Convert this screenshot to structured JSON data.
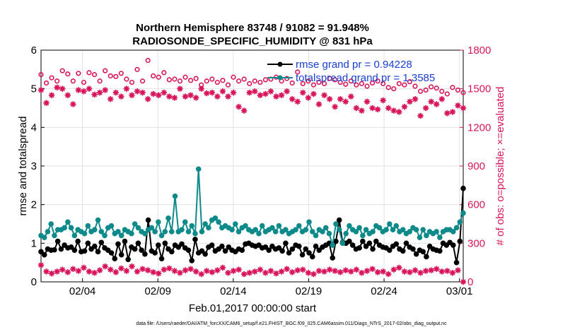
{
  "chart_data": {
    "type": "line",
    "title_lines": [
      "Northern Hemisphere 83748 / 91082 = 91.948%",
      "RADIOSONDE_SPECIFIC_HUMIDITY @ 831 hPa"
    ],
    "xlabel": "Feb.01,2017 00:00:00 start",
    "ylabel_left": "rmse and totalspread",
    "ylabel_right": "# of obs: o=possible; ×=evaluated",
    "footer": "data file: /Users/raeder/DAI/ATM_forcXX/CAM6_setup/f.e21.FHIST_BGC.f09_025.CAM6assim.011/Diags_NTrS_2017-02/obs_diag_output.nc",
    "x_ticks": [
      {
        "day": 3,
        "label": "02/04"
      },
      {
        "day": 8,
        "label": "02/09"
      },
      {
        "day": 13,
        "label": "02/14"
      },
      {
        "day": 18,
        "label": "02/19"
      },
      {
        "day": 23,
        "label": "02/24"
      },
      {
        "day": 28,
        "label": "03/01"
      }
    ],
    "xlim": [
      0.25,
      28.25
    ],
    "ylim_left": [
      0,
      6
    ],
    "ylim_right": [
      0,
      1800
    ],
    "y_ticks_left": [
      0,
      1,
      2,
      3,
      4,
      5,
      6
    ],
    "y_ticks_right": [
      0,
      300,
      600,
      900,
      1200,
      1500,
      1800
    ],
    "colors": {
      "rmse": "#000000",
      "spread": "#0f8a8a",
      "obs": "#d8145a",
      "legend_text": "#1a3fd0",
      "grid": "#e2e2e2"
    },
    "legend": [
      {
        "label": "rmse grand pr = 0.94228",
        "series": "rmse"
      },
      {
        "label": "totalspread grand pr = 1.3585",
        "series": "spread"
      }
    ],
    "series": [
      {
        "name": "rmse",
        "axis": "left",
        "values": [
          0.78,
          0.7,
          0.85,
          0.82,
          0.83,
          1.05,
          0.85,
          0.95,
          0.88,
          0.9,
          0.82,
          1.05,
          0.78,
          0.8,
          1.0,
          0.85,
          0.92,
          0.78,
          1.02,
          0.88,
          0.82,
          0.75,
          0.6,
          0.98,
          0.7,
          1.05,
          0.58,
          0.9,
          0.85,
          1.0,
          0.82,
          0.72,
          1.6,
          0.8,
          0.75,
          0.95,
          0.6,
          1.0,
          0.85,
          0.78,
          0.95,
          0.9,
          0.98,
          0.88,
          0.82,
          0.55,
          1.1,
          0.75,
          0.8,
          0.72,
          0.9,
          0.95,
          0.8,
          0.85,
          0.92,
          0.8,
          0.9,
          0.82,
          0.78,
          0.85,
          0.82,
          0.98,
          1.0,
          0.95,
          0.92,
          0.95,
          0.88,
          0.9,
          0.82,
          0.92,
          0.85,
          0.88,
          0.8,
          1.0,
          0.75,
          0.85,
          0.95,
          0.92,
          0.7,
          0.85,
          0.75,
          0.65,
          0.92,
          0.82,
          0.9,
          0.95,
          1.0,
          0.62,
          1.05,
          1.6,
          1.02,
          1.0,
          1.05,
          0.95,
          0.85,
          0.88,
          1.05,
          0.92,
          1.0,
          0.85,
          1.05,
          0.95,
          0.9,
          0.88,
          0.82,
          0.92,
          0.98,
          0.85,
          0.8,
          1.0,
          0.9,
          0.85,
          0.72,
          0.82,
          0.78,
          0.65,
          0.92,
          0.85,
          0.82,
          0.8,
          1.0,
          0.95,
          1.02,
          0.95,
          0.5,
          1.05,
          2.42
        ]
      },
      {
        "name": "totalspread",
        "axis": "left",
        "values": [
          1.2,
          1.15,
          1.3,
          1.5,
          1.2,
          1.35,
          1.35,
          1.4,
          1.55,
          1.4,
          1.2,
          1.35,
          1.3,
          1.25,
          1.45,
          1.3,
          1.35,
          1.6,
          1.3,
          1.2,
          1.4,
          1.45,
          1.25,
          1.3,
          1.2,
          1.35,
          1.3,
          1.25,
          1.5,
          1.4,
          1.3,
          1.25,
          1.35,
          1.4,
          1.3,
          1.55,
          1.2,
          1.3,
          1.65,
          1.3,
          2.22,
          1.3,
          1.35,
          1.55,
          1.3,
          1.45,
          1.25,
          2.92,
          1.3,
          1.5,
          1.4,
          1.6,
          1.65,
          1.55,
          1.4,
          1.45,
          1.4,
          1.35,
          1.5,
          1.3,
          1.4,
          1.45,
          1.35,
          1.3,
          1.35,
          1.25,
          1.45,
          1.3,
          1.35,
          1.4,
          1.3,
          1.45,
          1.3,
          1.35,
          1.25,
          1.3,
          1.35,
          1.45,
          1.3,
          1.35,
          1.55,
          1.3,
          1.2,
          1.35,
          1.3,
          1.4,
          1.25,
          0.95,
          1.5,
          1.35,
          1.0,
          1.25,
          1.45,
          1.35,
          1.3,
          1.4,
          1.2,
          1.35,
          1.25,
          1.3,
          1.45,
          1.4,
          1.3,
          1.35,
          1.5,
          1.35,
          1.45,
          1.3,
          1.35,
          1.25,
          1.3,
          1.4,
          1.35,
          1.15,
          1.35,
          1.2,
          1.3,
          1.25,
          1.3,
          1.15,
          1.3,
          1.35,
          1.35,
          1.3,
          1.4,
          1.55,
          1.78
        ]
      },
      {
        "name": "possible",
        "axis": "right",
        "marker": "circle",
        "values": [
          1610,
          1545,
          1585,
          1560,
          1640,
          1615,
          1560,
          1620,
          1550,
          1625,
          1610,
          1560,
          1640,
          1600,
          1595,
          1620,
          1575,
          1550,
          1650,
          1560,
          1720,
          1600,
          1590,
          1625,
          1570,
          1575,
          1560,
          1590,
          1565,
          1580,
          1530,
          1560,
          1575,
          1550,
          1565,
          1530,
          1590,
          1560,
          1575,
          1540,
          1560,
          1550,
          1570,
          1575,
          1590,
          1560,
          1580,
          1545,
          1630,
          1540,
          1560,
          1530,
          1550,
          1540,
          1580,
          1570,
          1550,
          1535,
          1560,
          1530,
          1540,
          1520,
          1545,
          1560,
          1540,
          1510,
          1500,
          1540,
          1530,
          1555,
          1520,
          1480,
          1490,
          1515,
          1505,
          1480,
          1460,
          1510,
          1490,
          1470
        ]
      },
      {
        "name": "evaluated",
        "axis": "right",
        "marker": "asterisk",
        "values": [
          1490,
          1390,
          1450,
          1510,
          1500,
          1450,
          1380,
          1490,
          1480,
          1500,
          1455,
          1470,
          1490,
          1420,
          1470,
          1440,
          1500,
          1450,
          1480,
          1470,
          1420,
          1460,
          1450,
          1470,
          1440,
          1430,
          1500,
          1440,
          1450,
          1430,
          1500,
          1465,
          1470,
          1440,
          1480,
          1440,
          1470,
          1360,
          1330,
          1470,
          1480,
          1450,
          1460,
          1480,
          1440,
          1450,
          1480,
          1420,
          1400,
          1470,
          1430,
          1460,
          1380,
          1450,
          1420,
          1360,
          1420,
          1400,
          1440,
          1350,
          1330,
          1400,
          1350,
          1340,
          1410,
          1350,
          1330,
          1320,
          1360,
          1400,
          1420,
          1290,
          1350,
          1400,
          1380,
          1420,
          1310,
          1320,
          1370,
          1350
        ]
      },
      {
        "name": "possible_low",
        "axis": "right",
        "marker": "asterisk",
        "values": [
          130,
          80,
          65,
          80,
          95,
          75,
          100,
          85,
          110,
          80,
          70,
          90,
          120,
          95,
          75,
          105,
          85,
          120,
          80,
          100,
          90,
          75,
          65,
          95,
          105,
          85,
          70,
          90,
          100,
          80,
          60,
          85,
          75,
          90,
          110,
          70,
          85,
          95,
          60,
          70,
          80,
          95,
          70,
          85,
          65,
          80,
          100,
          75,
          90,
          95,
          70,
          60,
          85,
          80,
          95,
          85,
          75,
          90,
          80,
          95,
          70,
          85,
          100,
          75,
          80,
          60,
          95,
          110,
          80,
          75,
          90,
          70,
          85,
          90,
          100,
          80,
          85,
          70,
          90,
          0
        ]
      }
    ]
  }
}
